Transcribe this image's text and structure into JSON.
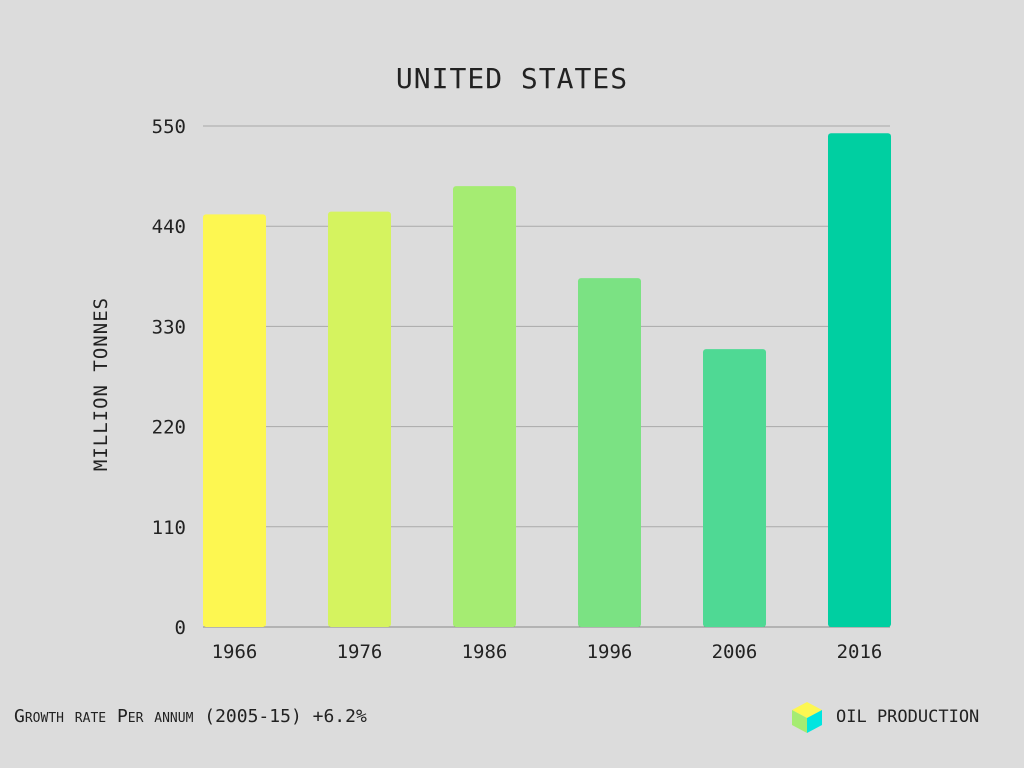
{
  "chart_data": {
    "type": "bar",
    "title": "UNITED STATES",
    "xlabel": "",
    "ylabel": "MILLION TONNES",
    "categories": [
      "1966",
      "1976",
      "1986",
      "1996",
      "2006",
      "2016"
    ],
    "values": [
      453,
      456,
      484,
      383,
      305,
      542
    ],
    "ylim": [
      0,
      550
    ],
    "yticks": [
      0,
      110,
      220,
      330,
      440,
      550
    ],
    "ytick_labels": [
      "0",
      "110",
      "220",
      "330",
      "440",
      "550"
    ],
    "grid": true,
    "bar_colors": [
      "#fdf751",
      "#d5f35f",
      "#a5ec72",
      "#7be283",
      "#4fd994",
      "#00cfa1"
    ],
    "series": [
      {
        "name": "OIL PRODUCTION",
        "values": [
          453,
          456,
          484,
          383,
          305,
          542
        ]
      }
    ]
  },
  "footer": {
    "growth_text": "Growth rate Per annum (2005-15) +6.2%"
  },
  "legend": {
    "label": "OIL PRODUCTION",
    "icon": "cube-icon",
    "colors": {
      "top": "#fdf751",
      "left": "#a5ec72",
      "right": "#00e5e0"
    }
  }
}
